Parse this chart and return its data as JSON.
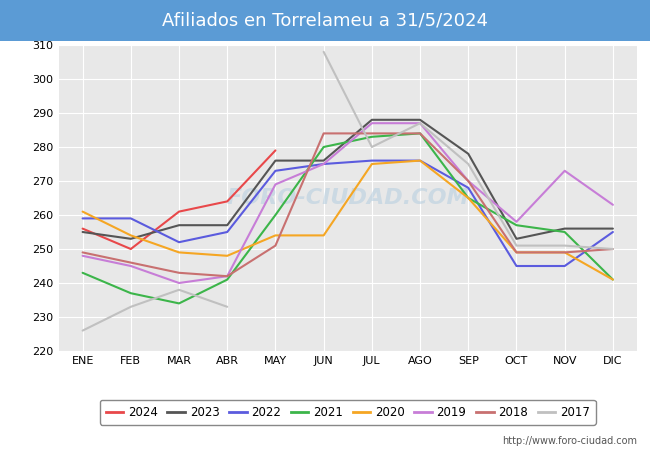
{
  "title": "Afiliados en Torrelameu a 31/5/2024",
  "title_bg": "#5b9bd5",
  "months": [
    "ENE",
    "FEB",
    "MAR",
    "ABR",
    "MAY",
    "JUN",
    "JUL",
    "AGO",
    "SEP",
    "OCT",
    "NOV",
    "DIC"
  ],
  "ylim": [
    220,
    310
  ],
  "yticks": [
    220,
    230,
    240,
    250,
    260,
    270,
    280,
    290,
    300,
    310
  ],
  "series": {
    "2024": {
      "color": "#e8484a",
      "data": [
        256,
        250,
        261,
        264,
        279,
        null,
        null,
        null,
        null,
        null,
        null,
        null
      ]
    },
    "2023": {
      "color": "#555555",
      "data": [
        255,
        253,
        257,
        257,
        276,
        276,
        288,
        288,
        278,
        253,
        256,
        256
      ]
    },
    "2022": {
      "color": "#5b5bde",
      "data": [
        259,
        259,
        252,
        255,
        273,
        275,
        276,
        276,
        268,
        245,
        245,
        255
      ]
    },
    "2021": {
      "color": "#3cb54a",
      "data": [
        243,
        237,
        234,
        241,
        260,
        280,
        283,
        284,
        265,
        257,
        255,
        241
      ]
    },
    "2020": {
      "color": "#f5a623",
      "data": [
        261,
        254,
        249,
        248,
        254,
        254,
        275,
        276,
        265,
        249,
        249,
        241
      ]
    },
    "2019": {
      "color": "#c77dd7",
      "data": [
        248,
        245,
        240,
        242,
        269,
        275,
        287,
        287,
        270,
        258,
        273,
        263
      ]
    },
    "2018": {
      "color": "#c87070",
      "data": [
        249,
        246,
        243,
        242,
        251,
        284,
        284,
        284,
        270,
        249,
        249,
        250
      ]
    },
    "2017": {
      "color": "#c0c0c0",
      "data": [
        226,
        233,
        238,
        233,
        null,
        308,
        280,
        287,
        275,
        251,
        251,
        250
      ]
    }
  },
  "legend_order": [
    "2024",
    "2023",
    "2022",
    "2021",
    "2020",
    "2019",
    "2018",
    "2017"
  ],
  "watermark": "FORO-CIUDAD.COM",
  "url": "http://www.foro-ciudad.com",
  "background_color": "#ffffff",
  "plot_bg": "#e8e8e8",
  "grid_color": "#ffffff",
  "line_width": 1.5
}
